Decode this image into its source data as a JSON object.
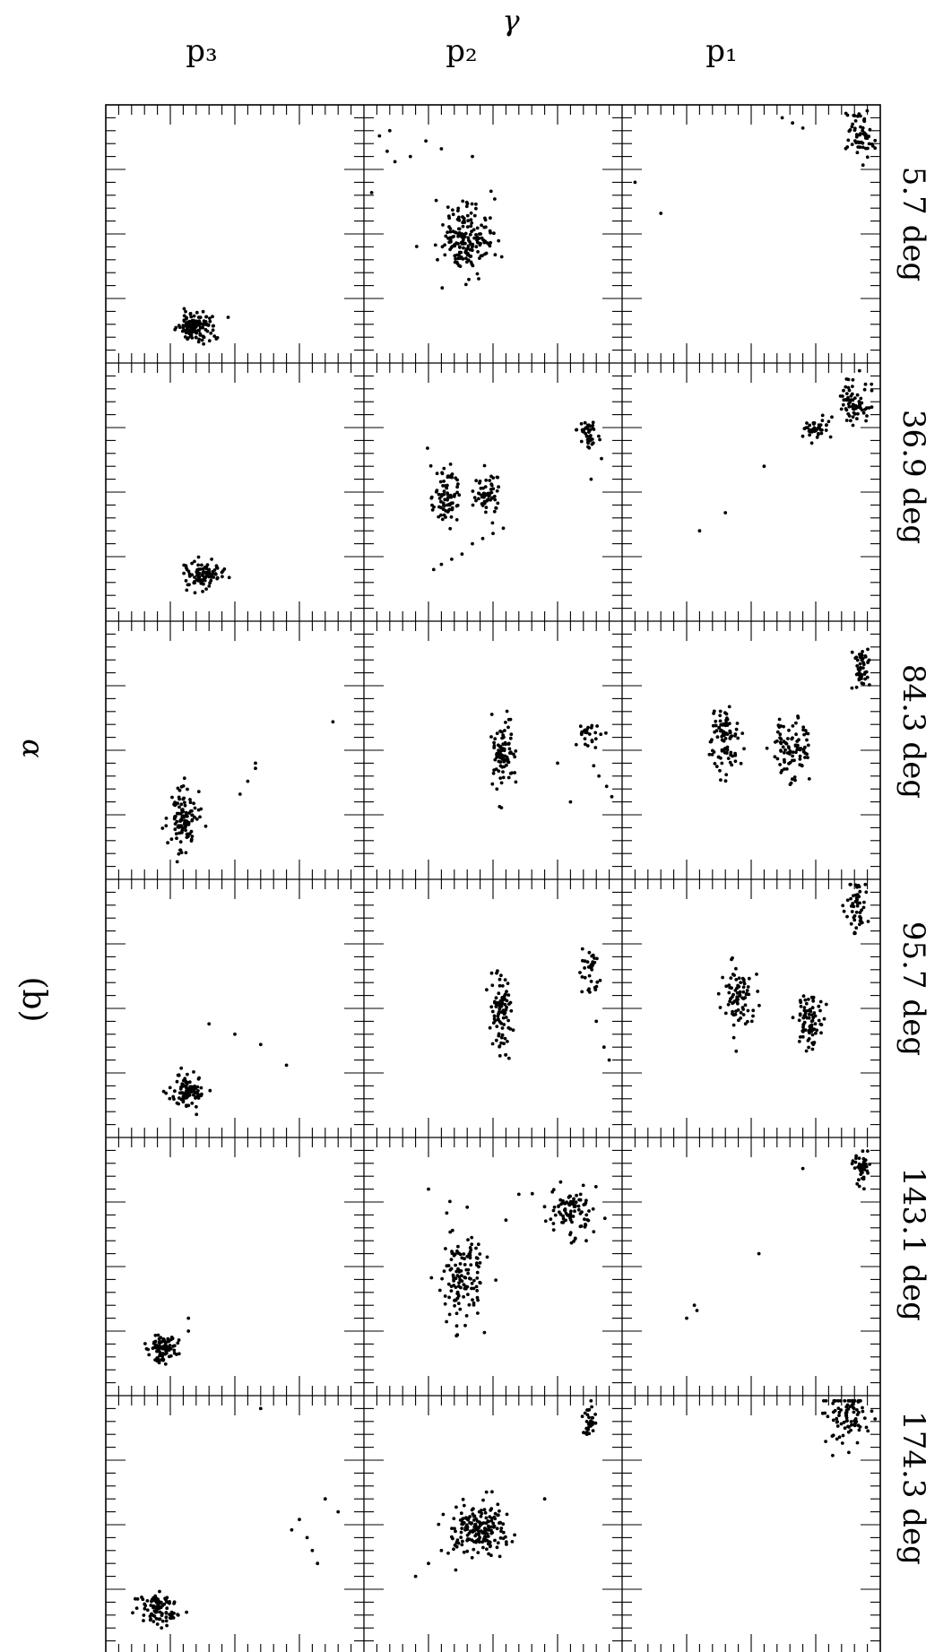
{
  "figure": {
    "panel_label": "(b)",
    "x_axis_symbol": "α",
    "y_axis_symbol": "γ"
  },
  "chart_data": {
    "type": "scatter",
    "title": "",
    "xlabel": "α",
    "ylabel": "γ",
    "columns": [
      "p₃",
      "p₂",
      "p₁"
    ],
    "rows": [
      "5.7 deg",
      "36.9 deg",
      "84.3 deg",
      "95.7 deg",
      "143.1 deg",
      "174.3 deg"
    ],
    "xlim": [
      0,
      1
    ],
    "ylim": [
      0,
      1
    ],
    "grid": false,
    "point_color": "#000000",
    "panels": [
      {
        "row": "5.7 deg",
        "column": "p₃",
        "clusters": [
          {
            "x": 0.35,
            "y": 0.14,
            "sx": 0.035,
            "sy": 0.03,
            "n": 120
          }
        ],
        "points": []
      },
      {
        "row": "5.7 deg",
        "column": "p₂",
        "clusters": [
          {
            "x": 0.4,
            "y": 0.48,
            "sx": 0.05,
            "sy": 0.07,
            "n": 180
          }
        ],
        "points": [
          {
            "x": 0.06,
            "y": 0.88
          },
          {
            "x": 0.1,
            "y": 0.9
          },
          {
            "x": 0.09,
            "y": 0.82
          },
          {
            "x": 0.12,
            "y": 0.78
          },
          {
            "x": 0.18,
            "y": 0.8
          },
          {
            "x": 0.24,
            "y": 0.86
          },
          {
            "x": 0.3,
            "y": 0.83
          },
          {
            "x": 0.42,
            "y": 0.8
          },
          {
            "x": 0.03,
            "y": 0.66
          },
          {
            "x": 0.28,
            "y": 0.63
          }
        ]
      },
      {
        "row": "5.7 deg",
        "column": "p₁",
        "clusters": [
          {
            "x": 0.92,
            "y": 0.88,
            "sx": 0.025,
            "sy": 0.05,
            "n": 60
          }
        ],
        "points": [
          {
            "x": 0.62,
            "y": 0.95
          },
          {
            "x": 0.66,
            "y": 0.93
          },
          {
            "x": 0.7,
            "y": 0.91
          },
          {
            "x": 0.05,
            "y": 0.7
          },
          {
            "x": 0.15,
            "y": 0.58
          }
        ]
      },
      {
        "row": "36.9 deg",
        "column": "p₃",
        "clusters": [
          {
            "x": 0.38,
            "y": 0.18,
            "sx": 0.035,
            "sy": 0.025,
            "n": 100
          }
        ],
        "points": []
      },
      {
        "row": "36.9 deg",
        "column": "p₂",
        "clusters": [
          {
            "x": 0.32,
            "y": 0.48,
            "sx": 0.025,
            "sy": 0.06,
            "n": 80
          },
          {
            "x": 0.48,
            "y": 0.49,
            "sx": 0.025,
            "sy": 0.04,
            "n": 60
          },
          {
            "x": 0.87,
            "y": 0.73,
            "sx": 0.02,
            "sy": 0.025,
            "n": 40
          }
        ],
        "points": [
          {
            "x": 0.27,
            "y": 0.2
          },
          {
            "x": 0.3,
            "y": 0.22
          },
          {
            "x": 0.34,
            "y": 0.24
          },
          {
            "x": 0.38,
            "y": 0.26
          },
          {
            "x": 0.42,
            "y": 0.3
          },
          {
            "x": 0.46,
            "y": 0.32
          },
          {
            "x": 0.5,
            "y": 0.34
          },
          {
            "x": 0.54,
            "y": 0.36
          },
          {
            "x": 0.92,
            "y": 0.63
          },
          {
            "x": 0.88,
            "y": 0.55
          }
        ]
      },
      {
        "row": "36.9 deg",
        "column": "p₁",
        "clusters": [
          {
            "x": 0.9,
            "y": 0.85,
            "sx": 0.03,
            "sy": 0.05,
            "n": 70
          },
          {
            "x": 0.75,
            "y": 0.75,
            "sx": 0.035,
            "sy": 0.025,
            "n": 40
          }
        ],
        "points": [
          {
            "x": 0.55,
            "y": 0.6
          },
          {
            "x": 0.4,
            "y": 0.42
          },
          {
            "x": 0.3,
            "y": 0.35
          }
        ]
      },
      {
        "row": "84.3 deg",
        "column": "p₃",
        "clusters": [
          {
            "x": 0.3,
            "y": 0.24,
            "sx": 0.03,
            "sy": 0.06,
            "n": 110
          }
        ],
        "points": [
          {
            "x": 0.58,
            "y": 0.43
          },
          {
            "x": 0.55,
            "y": 0.38
          },
          {
            "x": 0.52,
            "y": 0.33
          },
          {
            "x": 0.58,
            "y": 0.45
          },
          {
            "x": 0.88,
            "y": 0.61
          }
        ]
      },
      {
        "row": "84.3 deg",
        "column": "p₂",
        "clusters": [
          {
            "x": 0.54,
            "y": 0.48,
            "sx": 0.02,
            "sy": 0.07,
            "n": 90
          },
          {
            "x": 0.87,
            "y": 0.56,
            "sx": 0.02,
            "sy": 0.025,
            "n": 25
          }
        ],
        "points": [
          {
            "x": 0.96,
            "y": 0.32
          },
          {
            "x": 0.94,
            "y": 0.36
          },
          {
            "x": 0.91,
            "y": 0.4
          },
          {
            "x": 0.89,
            "y": 0.44
          },
          {
            "x": 0.8,
            "y": 0.3
          },
          {
            "x": 0.75,
            "y": 0.45
          }
        ]
      },
      {
        "row": "84.3 deg",
        "column": "p₁",
        "clusters": [
          {
            "x": 0.93,
            "y": 0.82,
            "sx": 0.015,
            "sy": 0.04,
            "n": 50
          },
          {
            "x": 0.66,
            "y": 0.5,
            "sx": 0.035,
            "sy": 0.07,
            "n": 90
          },
          {
            "x": 0.4,
            "y": 0.55,
            "sx": 0.03,
            "sy": 0.07,
            "n": 90
          }
        ]
      },
      {
        "row": "95.7 deg",
        "column": "p₃",
        "clusters": [
          {
            "x": 0.32,
            "y": 0.18,
            "sx": 0.035,
            "sy": 0.03,
            "n": 100
          }
        ],
        "points": [
          {
            "x": 0.7,
            "y": 0.28
          },
          {
            "x": 0.6,
            "y": 0.36
          },
          {
            "x": 0.5,
            "y": 0.4
          },
          {
            "x": 0.4,
            "y": 0.44
          }
        ]
      },
      {
        "row": "95.7 deg",
        "column": "p₂",
        "clusters": [
          {
            "x": 0.53,
            "y": 0.49,
            "sx": 0.02,
            "sy": 0.07,
            "n": 90
          },
          {
            "x": 0.87,
            "y": 0.65,
            "sx": 0.025,
            "sy": 0.045,
            "n": 35
          }
        ],
        "points": [
          {
            "x": 0.95,
            "y": 0.3
          },
          {
            "x": 0.93,
            "y": 0.35
          },
          {
            "x": 0.9,
            "y": 0.45
          }
        ]
      },
      {
        "row": "95.7 deg",
        "column": "p₁",
        "clusters": [
          {
            "x": 0.91,
            "y": 0.9,
            "sx": 0.02,
            "sy": 0.05,
            "n": 50
          },
          {
            "x": 0.73,
            "y": 0.45,
            "sx": 0.03,
            "sy": 0.06,
            "n": 80
          },
          {
            "x": 0.45,
            "y": 0.55,
            "sx": 0.03,
            "sy": 0.06,
            "n": 80
          }
        ]
      },
      {
        "row": "143.1 deg",
        "column": "p₃",
        "clusters": [
          {
            "x": 0.22,
            "y": 0.18,
            "sx": 0.03,
            "sy": 0.03,
            "n": 90
          }
        ],
        "points": [
          {
            "x": 0.32,
            "y": 0.25
          },
          {
            "x": 0.32,
            "y": 0.3
          }
        ]
      },
      {
        "row": "143.1 deg",
        "column": "p₂",
        "clusters": [
          {
            "x": 0.38,
            "y": 0.47,
            "sx": 0.04,
            "sy": 0.09,
            "n": 130
          },
          {
            "x": 0.8,
            "y": 0.71,
            "sx": 0.05,
            "sy": 0.05,
            "n": 90
          }
        ],
        "points": [
          {
            "x": 0.25,
            "y": 0.8
          },
          {
            "x": 0.4,
            "y": 0.73
          },
          {
            "x": 0.55,
            "y": 0.68
          },
          {
            "x": 0.6,
            "y": 0.78
          }
        ]
      },
      {
        "row": "143.1 deg",
        "column": "p₁",
        "clusters": [
          {
            "x": 0.93,
            "y": 0.88,
            "sx": 0.015,
            "sy": 0.035,
            "n": 45
          }
        ],
        "points": [
          {
            "x": 0.29,
            "y": 0.33
          },
          {
            "x": 0.28,
            "y": 0.35
          },
          {
            "x": 0.25,
            "y": 0.3
          },
          {
            "x": 0.7,
            "y": 0.88
          },
          {
            "x": 0.53,
            "y": 0.55
          }
        ]
      },
      {
        "row": "174.3 deg",
        "column": "p₃",
        "clusters": [
          {
            "x": 0.2,
            "y": 0.17,
            "sx": 0.04,
            "sy": 0.03,
            "n": 90
          }
        ],
        "points": [
          {
            "x": 0.82,
            "y": 0.35
          },
          {
            "x": 0.8,
            "y": 0.4
          },
          {
            "x": 0.78,
            "y": 0.45
          },
          {
            "x": 0.75,
            "y": 0.52
          },
          {
            "x": 0.72,
            "y": 0.48
          },
          {
            "x": 0.6,
            "y": 0.95
          },
          {
            "x": 0.85,
            "y": 0.6
          },
          {
            "x": 0.9,
            "y": 0.55
          }
        ]
      },
      {
        "row": "174.3 deg",
        "column": "p₂",
        "clusters": [
          {
            "x": 0.45,
            "y": 0.48,
            "sx": 0.06,
            "sy": 0.05,
            "n": 180
          },
          {
            "x": 0.87,
            "y": 0.9,
            "sx": 0.015,
            "sy": 0.03,
            "n": 30
          }
        ],
        "points": [
          {
            "x": 0.2,
            "y": 0.3
          },
          {
            "x": 0.25,
            "y": 0.35
          },
          {
            "x": 0.3,
            "y": 0.4
          },
          {
            "x": 0.7,
            "y": 0.6
          }
        ]
      },
      {
        "row": "174.3 deg",
        "column": "p₁",
        "clusters": [
          {
            "x": 0.88,
            "y": 0.92,
            "sx": 0.04,
            "sy": 0.06,
            "n": 90
          }
        ]
      }
    ]
  }
}
